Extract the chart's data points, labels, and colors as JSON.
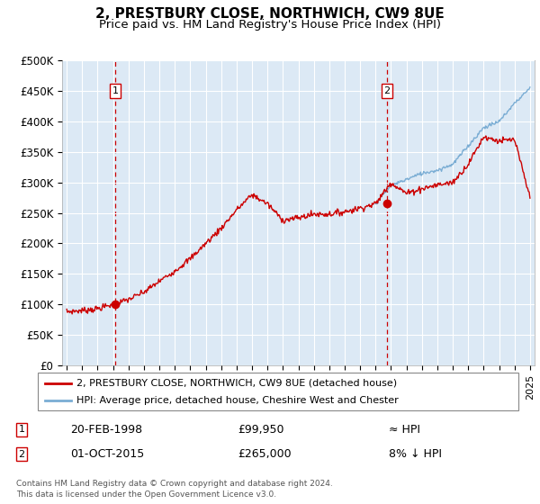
{
  "title": "2, PRESTBURY CLOSE, NORTHWICH, CW9 8UE",
  "subtitle": "Price paid vs. HM Land Registry's House Price Index (HPI)",
  "ylim": [
    0,
    500000
  ],
  "yticks": [
    0,
    50000,
    100000,
    150000,
    200000,
    250000,
    300000,
    350000,
    400000,
    450000,
    500000
  ],
  "ytick_labels": [
    "£0",
    "£50K",
    "£100K",
    "£150K",
    "£200K",
    "£250K",
    "£300K",
    "£350K",
    "£400K",
    "£450K",
    "£500K"
  ],
  "xlim_start": 1994.7,
  "xlim_end": 2025.3,
  "xticks": [
    1995,
    1996,
    1997,
    1998,
    1999,
    2000,
    2001,
    2002,
    2003,
    2004,
    2005,
    2006,
    2007,
    2008,
    2009,
    2010,
    2011,
    2012,
    2013,
    2014,
    2015,
    2016,
    2017,
    2018,
    2019,
    2020,
    2021,
    2022,
    2023,
    2024,
    2025
  ],
  "plot_bg_color": "#dce9f5",
  "red_line_color": "#cc0000",
  "blue_line_color": "#7aadd4",
  "vline_color": "#cc0000",
  "sale1_year": 1998.13,
  "sale1_price": 99950,
  "sale2_year": 2015.75,
  "sale2_price": 265000,
  "legend_line1": "2, PRESTBURY CLOSE, NORTHWICH, CW9 8UE (detached house)",
  "legend_line2": "HPI: Average price, detached house, Cheshire West and Chester",
  "sale1_date": "20-FEB-1998",
  "sale1_amount": "£99,950",
  "sale1_hpi": "≈ HPI",
  "sale2_date": "01-OCT-2015",
  "sale2_amount": "£265,000",
  "sale2_hpi": "8% ↓ HPI",
  "footnote1": "Contains HM Land Registry data © Crown copyright and database right 2024.",
  "footnote2": "This data is licensed under the Open Government Licence v3.0."
}
